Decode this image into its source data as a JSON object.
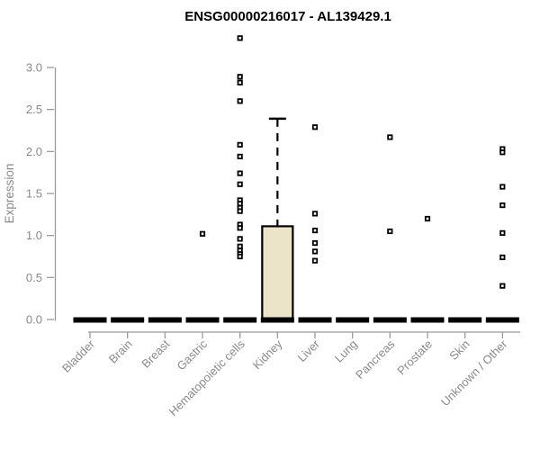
{
  "chart_data": {
    "type": "boxplot",
    "title": "ENSG00000216017 - AL139429.1",
    "ylabel": "Expression",
    "xlabel": "",
    "ylim": [
      0,
      3.0
    ],
    "yticks": [
      0.0,
      0.5,
      1.0,
      1.5,
      2.0,
      2.5,
      3.0
    ],
    "grid": false,
    "legend": false,
    "categories": [
      "Bladder",
      "Brain",
      "Breast",
      "Gastric",
      "Hematopoietic cells",
      "Kidney",
      "Liver",
      "Lung",
      "Pancreas",
      "Prostate",
      "Skin",
      "Unknown / Other"
    ],
    "series": [
      {
        "category": "Bladder",
        "low": 0,
        "q1": 0,
        "median": 0,
        "q3": 0,
        "high": 0,
        "outliers": []
      },
      {
        "category": "Brain",
        "low": 0,
        "q1": 0,
        "median": 0,
        "q3": 0,
        "high": 0,
        "outliers": []
      },
      {
        "category": "Breast",
        "low": 0,
        "q1": 0,
        "median": 0,
        "q3": 0,
        "high": 0,
        "outliers": []
      },
      {
        "category": "Gastric",
        "low": 0,
        "q1": 0,
        "median": 0,
        "q3": 0,
        "high": 0,
        "outliers": [
          1.02
        ]
      },
      {
        "category": "Hematopoietic cells",
        "low": 0,
        "q1": 0,
        "median": 0,
        "q3": 0,
        "high": 0,
        "outliers": [
          3.35,
          2.89,
          2.82,
          2.6,
          2.08,
          1.94,
          1.74,
          1.61,
          1.42,
          1.38,
          1.33,
          1.29,
          1.13,
          1.09,
          0.96,
          0.87,
          0.82,
          0.78,
          0.75
        ]
      },
      {
        "category": "Kidney",
        "low": 0,
        "q1": 0,
        "median": 0,
        "q3": 1.11,
        "high": 2.39,
        "outliers": []
      },
      {
        "category": "Liver",
        "low": 0,
        "q1": 0,
        "median": 0,
        "q3": 0,
        "high": 0,
        "outliers": [
          2.29,
          1.26,
          1.06,
          0.91,
          0.81,
          0.7
        ]
      },
      {
        "category": "Lung",
        "low": 0,
        "q1": 0,
        "median": 0,
        "q3": 0,
        "high": 0,
        "outliers": []
      },
      {
        "category": "Pancreas",
        "low": 0,
        "q1": 0,
        "median": 0,
        "q3": 0,
        "high": 0,
        "outliers": [
          2.17,
          1.05
        ]
      },
      {
        "category": "Prostate",
        "low": 0,
        "q1": 0,
        "median": 0,
        "q3": 0,
        "high": 0,
        "outliers": [
          1.2
        ]
      },
      {
        "category": "Skin",
        "low": 0,
        "q1": 0,
        "median": 0,
        "q3": 0,
        "high": 0,
        "outliers": []
      },
      {
        "category": "Unknown / Other",
        "low": 0,
        "q1": 0,
        "median": 0,
        "q3": 0,
        "high": 0,
        "outliers": [
          2.03,
          1.99,
          1.58,
          1.36,
          1.03,
          0.74,
          0.4
        ]
      }
    ],
    "colors": {
      "title": "#000000",
      "text": "#8a8a8a",
      "axis": "#9a9a9a",
      "box_fill": "#ece4c9",
      "box_border": "#000000",
      "bar": "#000000",
      "marker_fill": "#ffffff",
      "marker_border": "#000000"
    }
  }
}
